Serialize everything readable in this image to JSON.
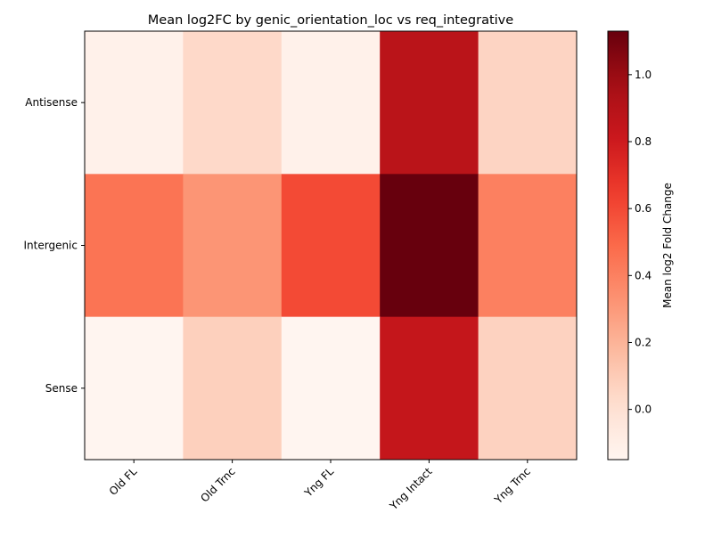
{
  "chart_data": {
    "type": "heatmap",
    "title": "Mean log2FC by genic_orientation_loc vs req_integrative",
    "xlabel": "",
    "ylabel": "",
    "x_categories": [
      "Old FL",
      "Old Trnc",
      "Yng FL",
      "Yng Intact",
      "Yng Trnc"
    ],
    "y_categories": [
      "Antisense",
      "Intergenic",
      "Sense"
    ],
    "values": [
      [
        -0.12,
        0.04,
        -0.12,
        0.88,
        0.06
      ],
      [
        0.45,
        0.32,
        0.6,
        1.13,
        0.4
      ],
      [
        -0.15,
        0.08,
        -0.15,
        0.84,
        0.07
      ]
    ],
    "colormap": "Reds",
    "color_range": [
      -0.15,
      1.13
    ],
    "colorbar": {
      "label": "Mean log2 Fold Change",
      "ticks": [
        "0.0",
        "0.2",
        "0.4",
        "0.6",
        "0.8",
        "1.0"
      ]
    },
    "grid": false,
    "legend": "colorbar-right"
  }
}
